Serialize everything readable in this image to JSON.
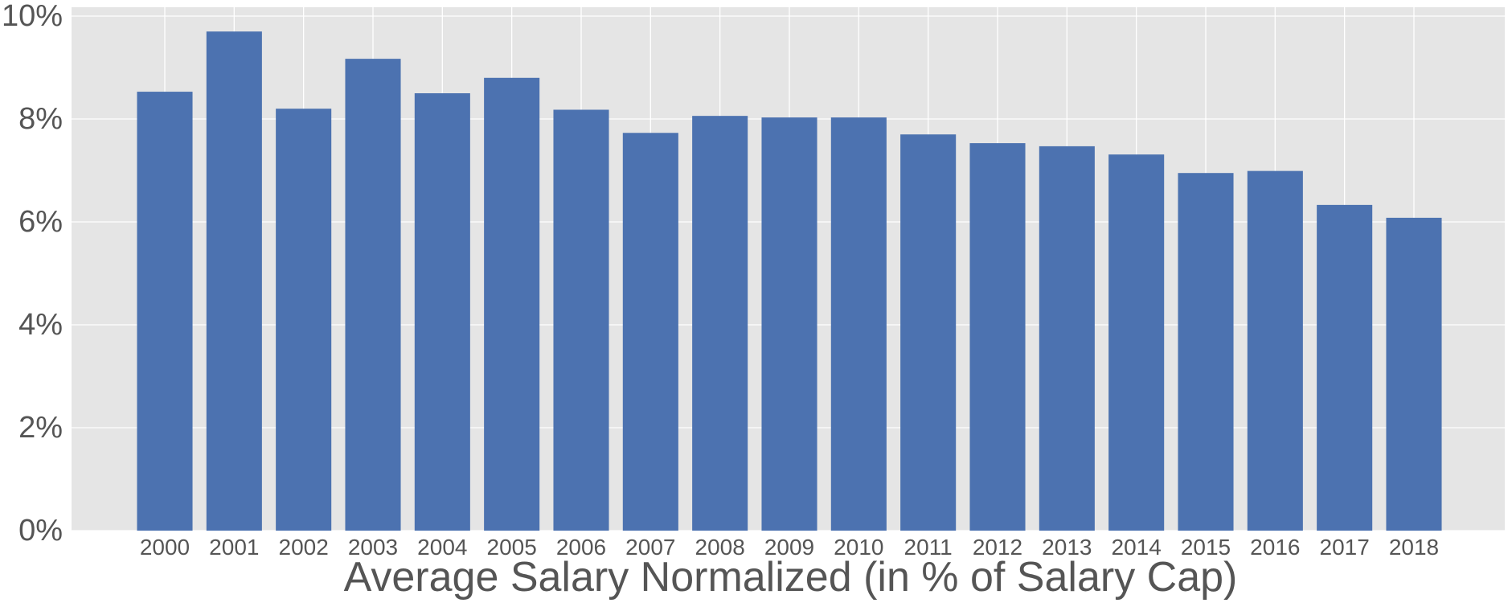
{
  "chart_data": {
    "type": "bar",
    "title": "",
    "xlabel": "Average Salary Normalized (in % of Salary Cap)",
    "ylabel": "",
    "categories": [
      "2000",
      "2001",
      "2002",
      "2003",
      "2004",
      "2005",
      "2006",
      "2007",
      "2008",
      "2009",
      "2010",
      "2011",
      "2012",
      "2013",
      "2014",
      "2015",
      "2016",
      "2017",
      "2018"
    ],
    "values": [
      8.53,
      9.7,
      8.2,
      9.17,
      8.5,
      8.8,
      8.18,
      7.73,
      8.06,
      8.03,
      8.03,
      7.7,
      7.53,
      7.47,
      7.31,
      6.95,
      6.99,
      6.33,
      6.08
    ],
    "ylim": [
      0,
      10
    ],
    "yticks": [
      0,
      2,
      4,
      6,
      8,
      10
    ],
    "ytick_labels": [
      "0%",
      "2%",
      "4%",
      "6%",
      "8%",
      "10%"
    ],
    "grid": true,
    "legend": "none",
    "colors": {
      "bar": "#4C72B0",
      "plot_background": "#E5E5E5",
      "grid": "#FFFFFF",
      "text": "#555555"
    }
  }
}
